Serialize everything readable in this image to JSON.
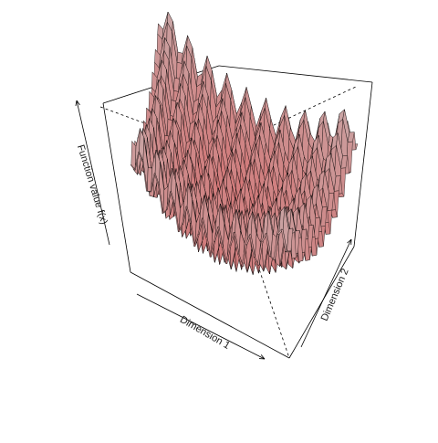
{
  "chart_data": {
    "type": "surface",
    "title": "",
    "xlabel": "Dimension 1",
    "ylabel": "Dimension 2",
    "zlabel": "Function value f(x)",
    "surface_description": "multimodal bowl-shaped surface with many local minima",
    "grid_resolution": 40,
    "theme": {
      "surface_color_low": "#d46a6a",
      "surface_color_high": "#c9a9a9",
      "edge_color": "#000000",
      "box_color": "#000000"
    }
  }
}
